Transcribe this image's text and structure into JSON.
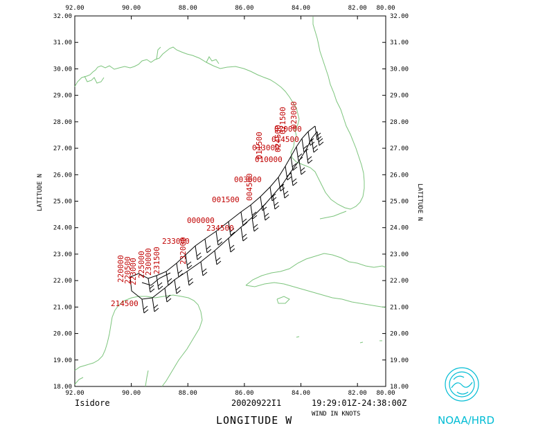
{
  "map": {
    "x_ticks": [
      "92.00",
      "90.00",
      "88.00",
      "86.00",
      "84.00",
      "82.00",
      "80.00"
    ],
    "y_ticks": [
      "32.00",
      "31.00",
      "30.00",
      "29.00",
      "28.00",
      "27.00",
      "26.00",
      "25.00",
      "24.00",
      "23.00",
      "22.00",
      "21.00",
      "20.00",
      "19.00",
      "18.00"
    ],
    "lon_range": [
      -92,
      -79
    ],
    "lat_range": [
      18,
      32
    ],
    "axis_y_label": "LATITUDE N",
    "axis_x_label": "LONGITUDE W",
    "coastline_color": "#7cc47c",
    "label_color": "#c00000"
  },
  "footer": {
    "storm_name": "Isidore",
    "flight_id": "20020922I1",
    "time_range": "19:29:01Z-24:38:00Z",
    "wind_units": "WIND IN KNOTS",
    "agency": "NOAA/HRD"
  },
  "time_labels": [
    "214500",
    "220000",
    "220500",
    "223000",
    "225000",
    "230000",
    "231500",
    "232000",
    "233000",
    "234500",
    "000000",
    "001500",
    "003000",
    "004500",
    "010000",
    "011500",
    "013000",
    "014500",
    "020000",
    "021500",
    "023000",
    "024500"
  ]
}
